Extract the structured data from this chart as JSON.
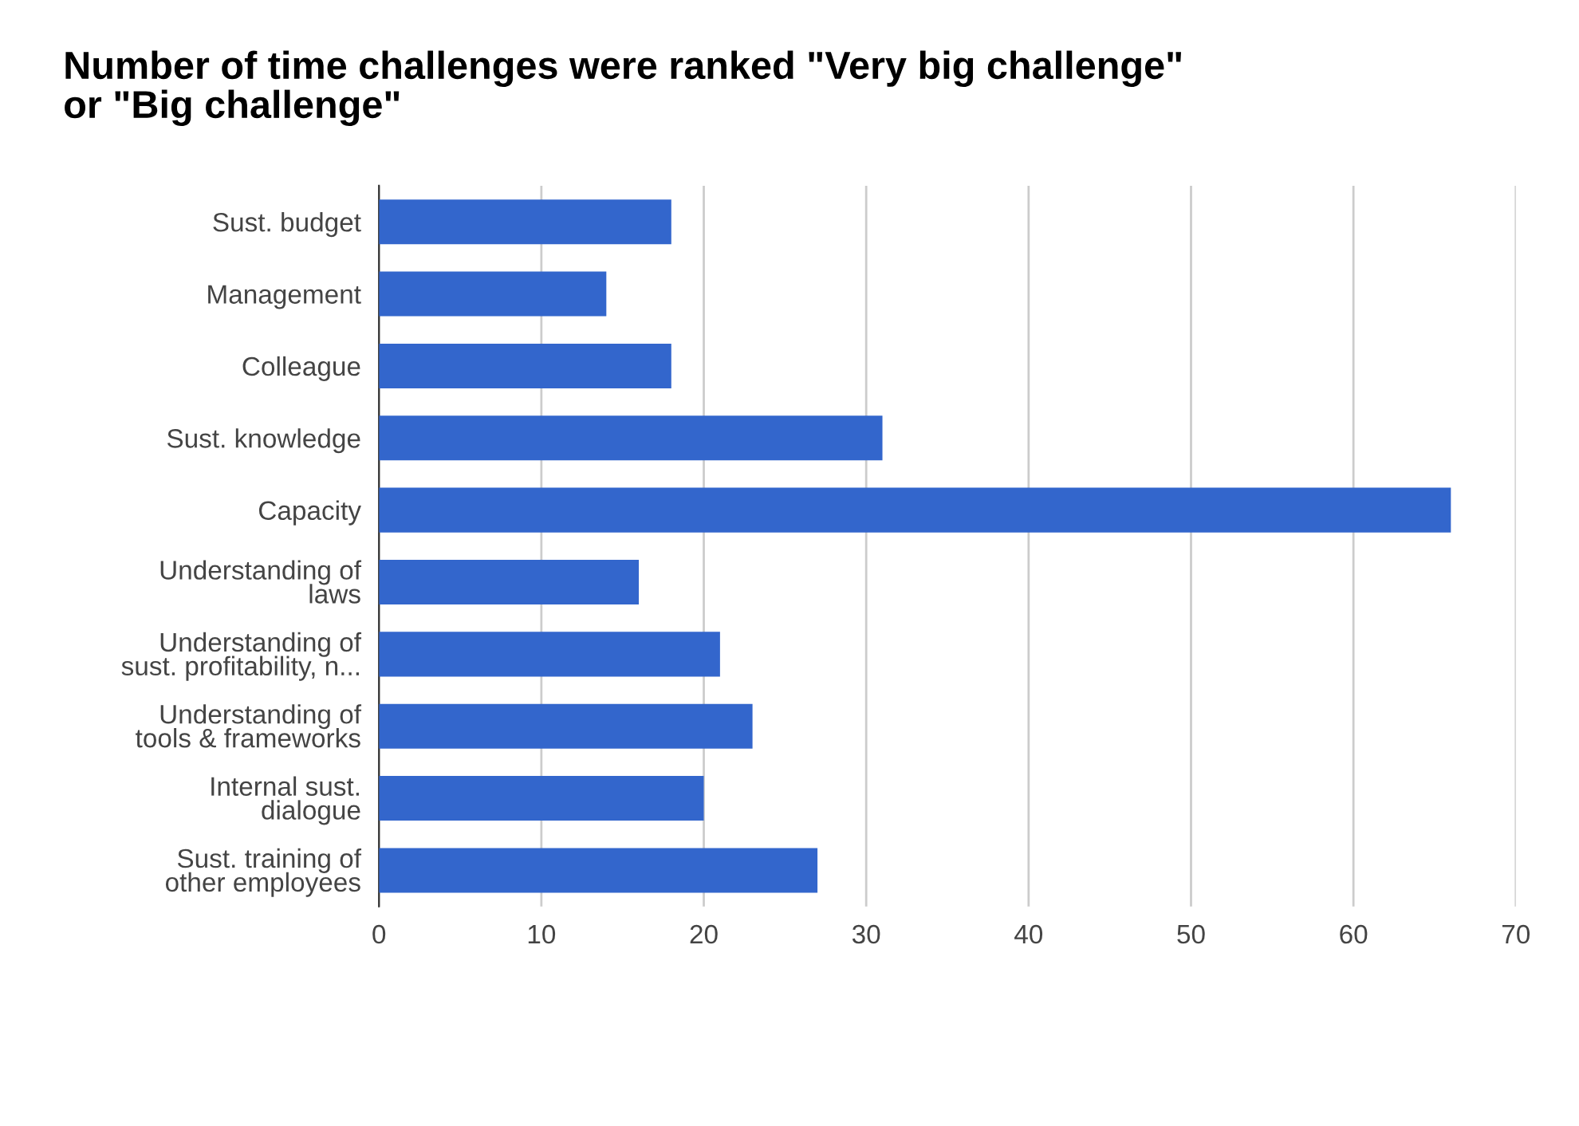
{
  "chart_data": {
    "type": "bar",
    "orientation": "horizontal",
    "title": "Number of time challenges were ranked \"Very big challenge\"\nor \"Big challenge\"",
    "categories": [
      "Sust. budget",
      "Management",
      "Colleague",
      "Sust. knowledge",
      "Capacity",
      "Understanding of\nlaws",
      "Understanding of\nsust. profitability, n...",
      "Understanding of\ntools & frameworks",
      "Internal sust.\ndialogue",
      "Sust. training of\nother employees"
    ],
    "values": [
      18,
      14,
      18,
      31,
      66,
      16,
      21,
      23,
      20,
      27
    ],
    "color": "#3366cc",
    "xlim": [
      0,
      70
    ],
    "xticks": [
      0,
      10,
      20,
      30,
      40,
      50,
      60,
      70
    ],
    "grid": "x",
    "legend": false
  }
}
